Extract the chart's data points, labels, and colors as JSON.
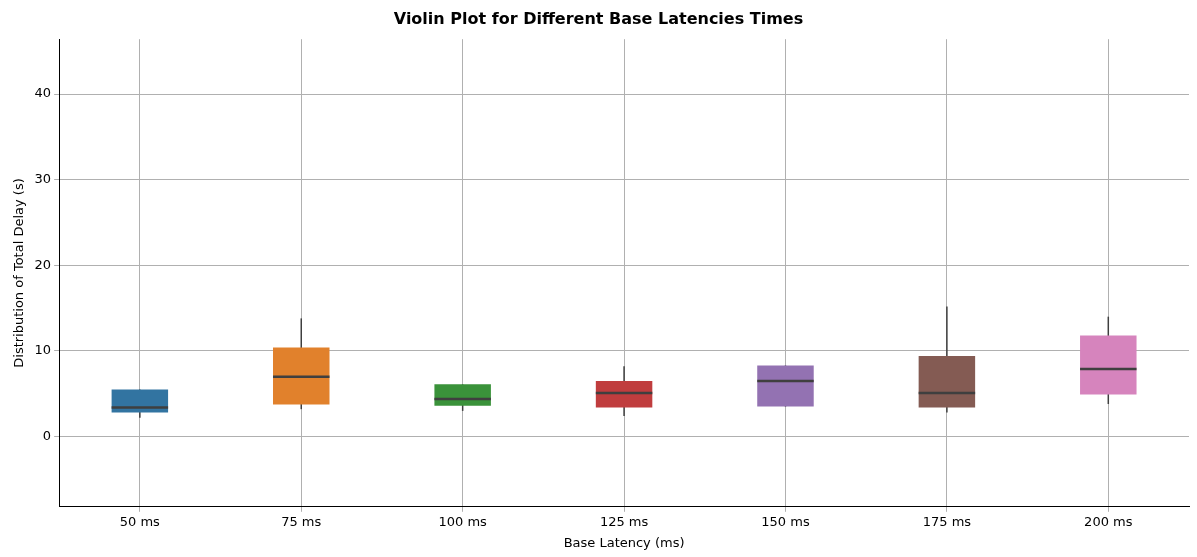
{
  "chart_data": {
    "type": "box",
    "title": "Violin Plot for Different Base Latencies Times",
    "xlabel": "Base Latency (ms)",
    "ylabel": "Distribution of Total Delay (s)",
    "categories": [
      "50 ms",
      "75 ms",
      "100 ms",
      "125 ms",
      "150 ms",
      "175 ms",
      "200 ms"
    ],
    "colors": [
      "#3274a1",
      "#e1812c",
      "#3a923a",
      "#c03d3e",
      "#9372b2",
      "#845b53",
      "#d684bd"
    ],
    "boxes": [
      {
        "low": 2.2,
        "q1": 2.8,
        "median": 3.4,
        "q3": 5.5,
        "high": 5.5
      },
      {
        "low": 3.2,
        "q1": 3.75,
        "median": 7.0,
        "q3": 10.4,
        "high": 13.8
      },
      {
        "low": 3.0,
        "q1": 3.6,
        "median": 4.4,
        "q3": 6.1,
        "high": 6.1
      },
      {
        "low": 2.4,
        "q1": 3.4,
        "median": 5.1,
        "q3": 6.5,
        "high": 8.2
      },
      {
        "low": 3.5,
        "q1": 3.5,
        "median": 6.5,
        "q3": 8.3,
        "high": 8.3
      },
      {
        "low": 2.8,
        "q1": 3.4,
        "median": 5.1,
        "q3": 9.4,
        "high": 15.2
      },
      {
        "low": 3.8,
        "q1": 4.9,
        "median": 7.9,
        "q3": 11.8,
        "high": 14.0
      }
    ],
    "ylim": [
      -8.2,
      46.4
    ],
    "yticks": [
      0,
      10,
      20,
      30,
      40
    ],
    "grid": true
  }
}
